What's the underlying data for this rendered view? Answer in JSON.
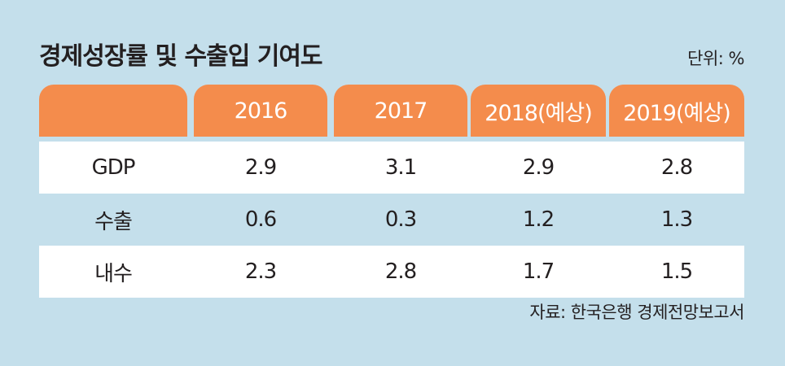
{
  "title": "경제성장률 및 수출입 기여도",
  "unit": "단위: %",
  "source": "자료: 한국은행 경제전망보고서",
  "chart_data": {
    "type": "table",
    "title": "경제성장률 및 수출입 기여도",
    "columns": [
      "",
      "2016",
      "2017",
      "2018(예상)",
      "2019(예상)"
    ],
    "rows": [
      {
        "label": "GDP",
        "values": [
          "2.9",
          "3.1",
          "2.9",
          "2.8"
        ]
      },
      {
        "label": "수출",
        "values": [
          "0.6",
          "0.3",
          "1.2",
          "1.3"
        ]
      },
      {
        "label": "내수",
        "values": [
          "2.3",
          "2.8",
          "1.7",
          "1.5"
        ]
      }
    ]
  },
  "colors": {
    "background": "#c4dfeb",
    "header": "#f48c4c",
    "row_highlight": "#ffffff"
  }
}
